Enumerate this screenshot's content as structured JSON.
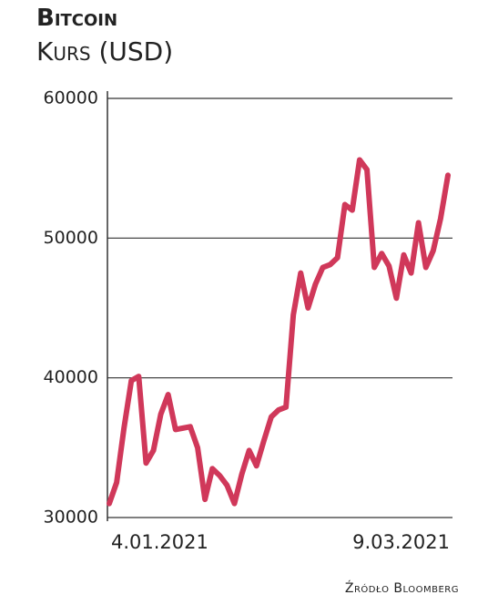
{
  "chart_data": {
    "type": "line",
    "title": "Bitcoin",
    "subtitle": "Kurs (USD)",
    "source": "Źródło Bloomberg",
    "categories": [
      "4.01.2021",
      null,
      null,
      null,
      null,
      null,
      null,
      null,
      null,
      null,
      null,
      null,
      null,
      null,
      null,
      null,
      null,
      null,
      null,
      null,
      null,
      null,
      null,
      null,
      null,
      null,
      null,
      null,
      null,
      null,
      null,
      null,
      null,
      null,
      null,
      null,
      null,
      null,
      null,
      null,
      null,
      null,
      null,
      null,
      null,
      null,
      "9.03.2021"
    ],
    "series": [
      {
        "name": "Bitcoin",
        "color": "#d0385a",
        "values": [
          31000,
          32500,
          36400,
          39800,
          40100,
          33900,
          34800,
          37400,
          38800,
          36300,
          36400,
          36500,
          35000,
          31300,
          33500,
          33000,
          32300,
          31000,
          33100,
          34800,
          33700,
          35500,
          37200,
          37700,
          37900,
          44500,
          47500,
          45000,
          46700,
          47900,
          48100,
          48600,
          52400,
          52000,
          55600,
          54900,
          47900,
          48900,
          48000,
          45700,
          48800,
          47500,
          51100,
          47900,
          49100,
          51400,
          54500
        ]
      }
    ],
    "ylim": [
      30000,
      60000
    ],
    "yticks": [
      30000,
      40000,
      50000,
      60000
    ],
    "grid": true
  }
}
